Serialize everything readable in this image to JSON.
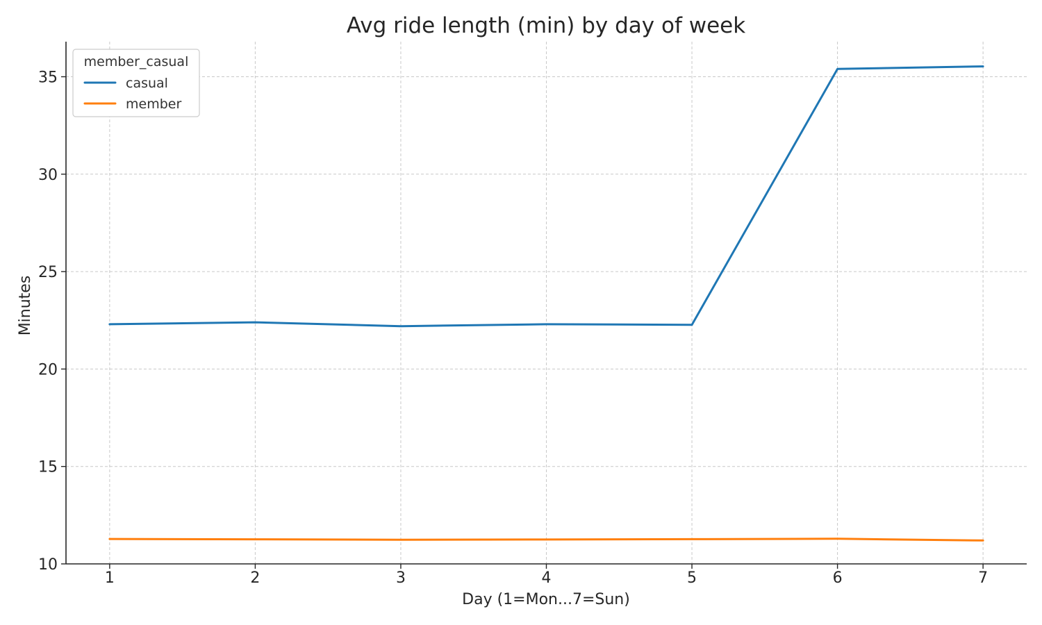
{
  "chart_data": {
    "type": "line",
    "title": "Avg ride length (min) by day of week",
    "xlabel": "Day (1=Mon...7=Sun)",
    "ylabel": "Minutes",
    "x": [
      1,
      2,
      3,
      4,
      5,
      6,
      7
    ],
    "x_ticks": [
      "1",
      "2",
      "3",
      "4",
      "5",
      "6",
      "7"
    ],
    "y_ticks": [
      "10",
      "15",
      "20",
      "25",
      "30",
      "35"
    ],
    "xlim": [
      0.7,
      7.3
    ],
    "ylim": [
      10,
      36.8
    ],
    "grid": true,
    "legend": {
      "title": "member_casual",
      "placement": "top-left"
    },
    "series": [
      {
        "name": "casual",
        "color": "#1f77b4",
        "values": [
          22.3,
          22.4,
          22.2,
          22.3,
          22.27,
          35.4,
          35.53
        ]
      },
      {
        "name": "member",
        "color": "#ff7f0e",
        "values": [
          11.28,
          11.26,
          11.24,
          11.25,
          11.27,
          11.29,
          11.2
        ]
      }
    ]
  }
}
